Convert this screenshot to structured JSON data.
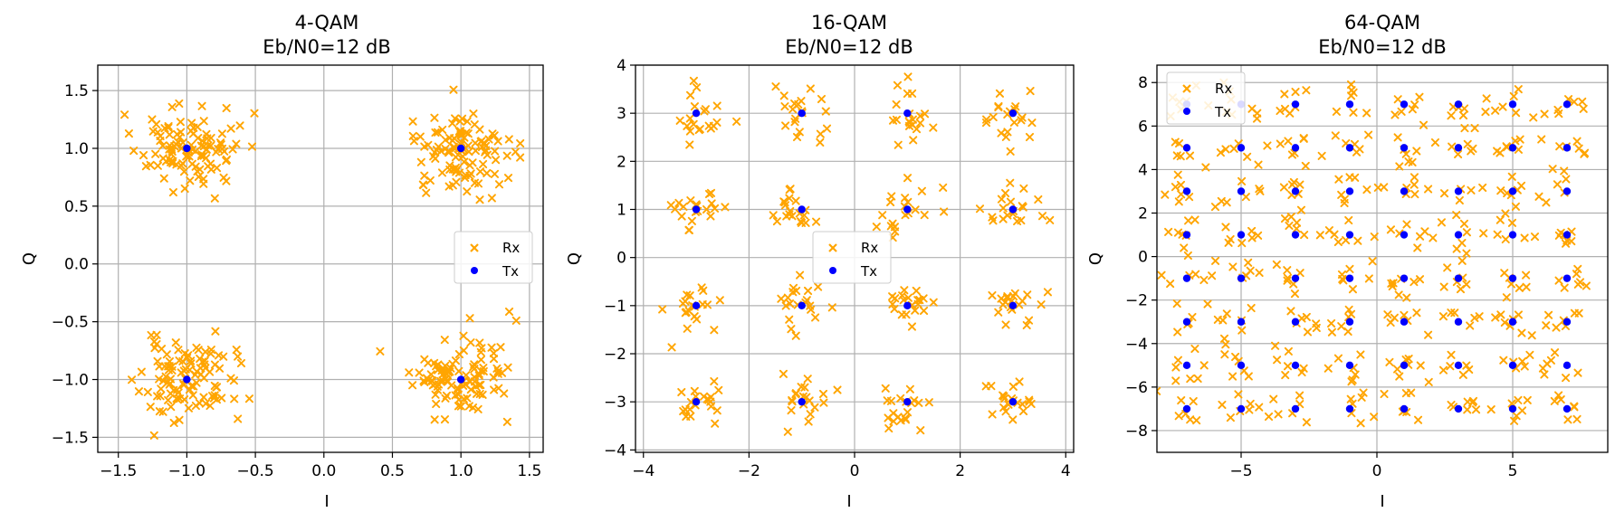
{
  "colors": {
    "rx": "#ffa500",
    "tx": "#0000ff",
    "grid": "#b0b0b0"
  },
  "chart_data": [
    {
      "type": "scatter",
      "title": "4-QAM",
      "subtitle": "Eb/N0=12 dB",
      "xlabel": "I",
      "ylabel": "Q",
      "xlim": [
        -1.65,
        1.6
      ],
      "ylim": [
        -1.63,
        1.72
      ],
      "xticks": [
        -1.5,
        -1.0,
        -0.5,
        0.0,
        0.5,
        1.0,
        1.5
      ],
      "yticks": [
        -1.5,
        -1.0,
        -0.5,
        0.0,
        0.5,
        1.0,
        1.5
      ],
      "xtick_labels": [
        "−1.5",
        "−1.0",
        "−0.5",
        "0.0",
        "0.5",
        "1.0",
        "1.5"
      ],
      "ytick_labels": [
        "−1.5",
        "−1.0",
        "−0.5",
        "0.0",
        "0.5",
        "1.0",
        "1.5"
      ],
      "grid": true,
      "legend_position": "center-right",
      "constellation_levels": [
        -1,
        1
      ],
      "points_per_symbol": 110,
      "noise_sigma": 0.17,
      "series": [
        {
          "name": "Rx",
          "marker": "x",
          "color": "#ffa500",
          "values": "noisy received symbols around each Tx point (randomly generated)"
        },
        {
          "name": "Tx",
          "marker": "o",
          "color": "#0000ff",
          "x": [
            -1,
            -1,
            1,
            1
          ],
          "y": [
            -1,
            1,
            -1,
            1
          ]
        }
      ]
    },
    {
      "type": "scatter",
      "title": "16-QAM",
      "subtitle": "Eb/N0=12 dB",
      "xlabel": "I",
      "ylabel": "Q",
      "xlim": [
        -4.15,
        4.15
      ],
      "ylim": [
        -4.05,
        4.0
      ],
      "xticks": [
        -4,
        -2,
        0,
        2,
        4
      ],
      "yticks": [
        -4,
        -3,
        -2,
        -1,
        0,
        1,
        2,
        3,
        4
      ],
      "xtick_labels": [
        "−4",
        "−2",
        "0",
        "2",
        "4"
      ],
      "ytick_labels": [
        "−4",
        "−3",
        "−2",
        "−1",
        "0",
        "1",
        "2",
        "3",
        "4"
      ],
      "grid": true,
      "legend_position": "center",
      "constellation_levels": [
        -3,
        -1,
        1,
        3
      ],
      "points_per_symbol": 20,
      "noise_sigma": 0.26,
      "series": [
        {
          "name": "Rx",
          "marker": "x",
          "color": "#ffa500",
          "values": "noisy received symbols around each Tx point (randomly generated)"
        },
        {
          "name": "Tx",
          "marker": "o",
          "color": "#0000ff",
          "levels": [
            -3,
            -1,
            1,
            3
          ]
        }
      ]
    },
    {
      "type": "scatter",
      "title": "64-QAM",
      "subtitle": "Eb/N0=12 dB",
      "xlabel": "I",
      "ylabel": "Q",
      "xlim": [
        -8.1,
        8.5
      ],
      "ylim": [
        -9.0,
        8.8
      ],
      "xticks": [
        -5,
        0,
        5
      ],
      "yticks": [
        -8,
        -6,
        -4,
        -2,
        0,
        2,
        4,
        6,
        8
      ],
      "xtick_labels": [
        "−5",
        "0",
        "5"
      ],
      "ytick_labels": [
        "−8",
        "−6",
        "−4",
        "−2",
        "0",
        "2",
        "4",
        "6",
        "8"
      ],
      "grid": true,
      "legend_position": "upper left",
      "constellation_levels": [
        -7,
        -5,
        -3,
        -1,
        1,
        3,
        5,
        7
      ],
      "points_per_symbol": 7,
      "noise_sigma": 0.45,
      "series": [
        {
          "name": "Rx",
          "marker": "x",
          "color": "#ffa500",
          "values": "noisy received symbols around each Tx point (randomly generated)"
        },
        {
          "name": "Tx",
          "marker": "o",
          "color": "#0000ff",
          "levels": [
            -7,
            -5,
            -3,
            -1,
            1,
            3,
            5,
            7
          ]
        }
      ]
    }
  ]
}
